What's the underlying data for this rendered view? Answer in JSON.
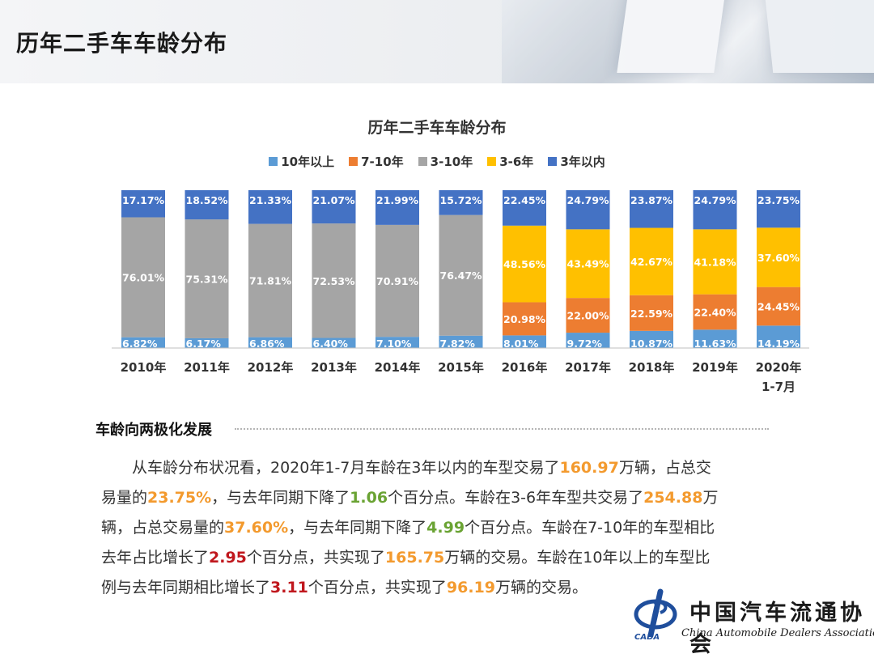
{
  "page": {
    "title": "历年二手车车龄分布"
  },
  "chart_data": {
    "type": "bar",
    "stacked": true,
    "percent_stacked": true,
    "title": "历年二手车车龄分布",
    "categories": [
      "2010年",
      "2011年",
      "2012年",
      "2013年",
      "2014年",
      "2015年",
      "2016年",
      "2017年",
      "2018年",
      "2019年",
      "2020年\n1-7月"
    ],
    "legend_order": [
      "10年以上",
      "7-10年",
      "3-10年",
      "3-6年",
      "3年以内"
    ],
    "legend_position": "top",
    "grid": false,
    "ylim": [
      0,
      100
    ],
    "series": [
      {
        "name": "10年以上",
        "color": "#5b9bd5",
        "values": [
          6.82,
          6.17,
          6.86,
          6.4,
          7.1,
          7.82,
          8.01,
          9.72,
          10.87,
          11.63,
          14.19
        ],
        "labels": [
          "6.82%",
          "6.17%",
          "6.86%",
          "6.40%",
          "7.10%",
          "7.82%",
          "8.01%",
          "9.72%",
          "10.87%",
          "11.63%",
          "14.19%"
        ]
      },
      {
        "name": "7-10年",
        "color": "#ed7d31",
        "values": [
          null,
          null,
          null,
          null,
          null,
          null,
          20.98,
          22.0,
          22.59,
          22.4,
          24.45
        ],
        "labels": [
          "",
          "",
          "",
          "",
          "",
          "",
          "20.98%",
          "22.00%",
          "22.59%",
          "22.40%",
          "24.45%"
        ]
      },
      {
        "name": "3-10年",
        "color": "#a5a5a5",
        "values": [
          76.01,
          75.31,
          71.81,
          72.53,
          70.91,
          76.47,
          null,
          null,
          null,
          null,
          null
        ],
        "labels": [
          "76.01%",
          "75.31%",
          "71.81%",
          "72.53%",
          "70.91%",
          "76.47%",
          "",
          "",
          "",
          "",
          ""
        ]
      },
      {
        "name": "3-6年",
        "color": "#ffc000",
        "values": [
          null,
          null,
          null,
          null,
          null,
          null,
          48.56,
          43.49,
          42.67,
          41.18,
          37.6
        ],
        "labels": [
          "",
          "",
          "",
          "",
          "",
          "",
          "48.56%",
          "43.49%",
          "42.67%",
          "41.18%",
          "37.60%"
        ]
      },
      {
        "name": "3年以内",
        "color": "#4472c4",
        "values": [
          17.17,
          18.52,
          21.33,
          21.07,
          21.99,
          15.72,
          22.45,
          24.79,
          23.87,
          24.79,
          23.75
        ],
        "labels": [
          "17.17%",
          "18.52%",
          "21.33%",
          "21.07%",
          "21.99%",
          "15.72%",
          "22.45%",
          "24.79%",
          "23.87%",
          "24.79%",
          "23.75%"
        ]
      }
    ]
  },
  "analysis": {
    "heading": "车龄向两极化发展",
    "lines": [
      [
        {
          "t": "从车龄分布状况看，2020年1-7月车龄在3年以内的车型交易了",
          "c": ""
        },
        {
          "t": "160.97",
          "c": "hl-orange"
        },
        {
          "t": "万辆，占总交",
          "c": ""
        }
      ],
      [
        {
          "t": "易量的",
          "c": ""
        },
        {
          "t": "23.75%",
          "c": "hl-orange"
        },
        {
          "t": "，与去年同期下降了",
          "c": ""
        },
        {
          "t": "1.06",
          "c": "hl-green"
        },
        {
          "t": "个百分点。车龄在3-6年车型共交易了",
          "c": ""
        },
        {
          "t": "254.88",
          "c": "hl-orange"
        },
        {
          "t": "万",
          "c": ""
        }
      ],
      [
        {
          "t": "辆，占总交易量的",
          "c": ""
        },
        {
          "t": "37.60%",
          "c": "hl-orange"
        },
        {
          "t": "，与去年同期下降了",
          "c": ""
        },
        {
          "t": "4.99",
          "c": "hl-green"
        },
        {
          "t": "个百分点。车龄在7-10年的车型相比",
          "c": ""
        }
      ],
      [
        {
          "t": "去年占比增长了",
          "c": ""
        },
        {
          "t": "2.95",
          "c": "hl-red"
        },
        {
          "t": "个百分点，共实现了",
          "c": ""
        },
        {
          "t": "165.75",
          "c": "hl-orange"
        },
        {
          "t": "万辆的交易。车龄在10年以上的车型比",
          "c": ""
        }
      ],
      [
        {
          "t": "例与去年同期相比增长了",
          "c": ""
        },
        {
          "t": "3.11",
          "c": "hl-red"
        },
        {
          "t": "个百分点，共实现了",
          "c": ""
        },
        {
          "t": "96.19",
          "c": "hl-orange"
        },
        {
          "t": "万辆的交易。",
          "c": ""
        }
      ]
    ]
  },
  "logo": {
    "name_cn": "中国汽车流通协会",
    "name_en": "China Automobile Dealers Association",
    "abbr": "CADA"
  }
}
